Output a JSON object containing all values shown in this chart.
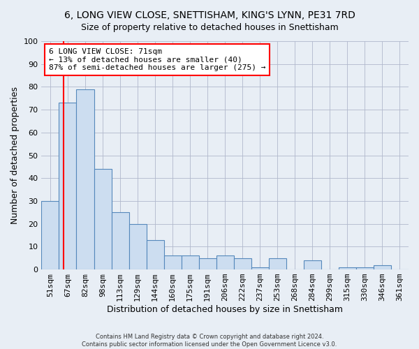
{
  "title": "6, LONG VIEW CLOSE, SNETTISHAM, KING'S LYNN, PE31 7RD",
  "subtitle": "Size of property relative to detached houses in Snettisham",
  "xlabel": "Distribution of detached houses by size in Snettisham",
  "ylabel": "Number of detached properties",
  "bar_color": "#ccddf0",
  "bar_edge_color": "#5588bb",
  "categories": [
    "51sqm",
    "67sqm",
    "82sqm",
    "98sqm",
    "113sqm",
    "129sqm",
    "144sqm",
    "160sqm",
    "175sqm",
    "191sqm",
    "206sqm",
    "222sqm",
    "237sqm",
    "253sqm",
    "268sqm",
    "284sqm",
    "299sqm",
    "315sqm",
    "330sqm",
    "346sqm",
    "361sqm"
  ],
  "values": [
    30,
    73,
    79,
    44,
    25,
    20,
    13,
    6,
    6,
    5,
    6,
    5,
    1,
    5,
    0,
    4,
    0,
    1,
    1,
    2,
    0
  ],
  "ylim": [
    0,
    100
  ],
  "yticks": [
    0,
    10,
    20,
    30,
    40,
    50,
    60,
    70,
    80,
    90,
    100
  ],
  "annotation_text_line1": "6 LONG VIEW CLOSE: 71sqm",
  "annotation_text_line2": "← 13% of detached houses are smaller (40)",
  "annotation_text_line3": "87% of semi-detached houses are larger (275) →",
  "annotation_box_color": "white",
  "annotation_box_edge_color": "red",
  "vline_color": "red",
  "background_color": "#e8eef5",
  "plot_bg_color": "#e8eef5",
  "footer_line1": "Contains HM Land Registry data © Crown copyright and database right 2024.",
  "footer_line2": "Contains public sector information licensed under the Open Government Licence v3.0.",
  "grid_color": "#b0b8cc",
  "title_fontsize": 10,
  "xlabel_fontsize": 9,
  "ylabel_fontsize": 9,
  "tick_fontsize": 8,
  "annotation_fontsize": 8
}
